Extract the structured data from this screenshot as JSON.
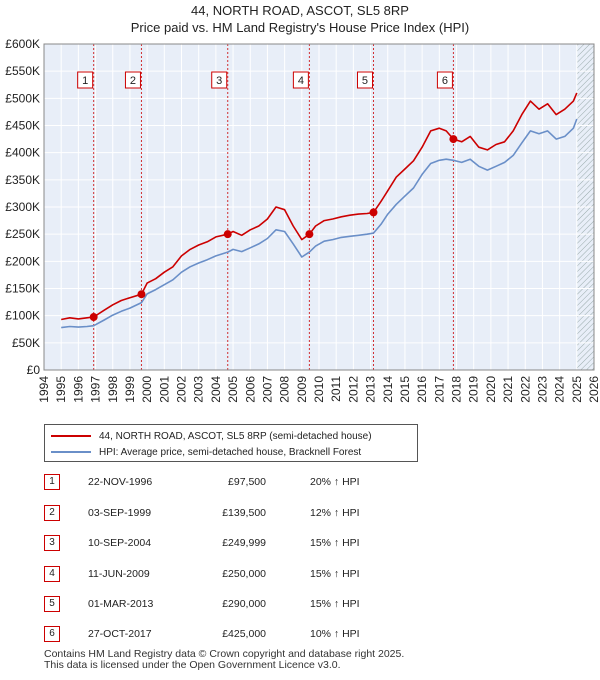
{
  "title": "44, NORTH ROAD, ASCOT, SL5 8RP",
  "subtitle": "Price paid vs. HM Land Registry's House Price Index (HPI)",
  "colors": {
    "property": "#cc0000",
    "hpi": "#6a8fc8",
    "band": "#e8eef8",
    "grid": "#ffffff"
  },
  "legend": {
    "property_label": "44, NORTH ROAD, ASCOT, SL5 8RP (semi-detached house)",
    "hpi_label": "HPI: Average price, semi-detached house, Bracknell Forest"
  },
  "sales": [
    {
      "num": "1",
      "date": "22-NOV-1996",
      "price": "£97,500",
      "hpi": "20% ↑ HPI"
    },
    {
      "num": "2",
      "date": "03-SEP-1999",
      "price": "£139,500",
      "hpi": "12% ↑ HPI"
    },
    {
      "num": "3",
      "date": "10-SEP-2004",
      "price": "£249,999",
      "hpi": "15% ↑ HPI"
    },
    {
      "num": "4",
      "date": "11-JUN-2009",
      "price": "£250,000",
      "hpi": "15% ↑ HPI"
    },
    {
      "num": "5",
      "date": "01-MAR-2013",
      "price": "£290,000",
      "hpi": "15% ↑ HPI"
    },
    {
      "num": "6",
      "date": "27-OCT-2017",
      "price": "£425,000",
      "hpi": "10% ↑ HPI"
    }
  ],
  "footer": {
    "line1": "Contains HM Land Registry data © Crown copyright and database right 2025.",
    "line2": "This data is licensed under the Open Government Licence v3.0."
  },
  "chart_data": {
    "type": "line",
    "xlim": [
      1994,
      2026
    ],
    "ylim": [
      0,
      600000
    ],
    "grid": true,
    "legend_position": "below",
    "x_ticks": [
      1994,
      1995,
      1996,
      1997,
      1998,
      1999,
      2000,
      2001,
      2002,
      2003,
      2004,
      2005,
      2006,
      2007,
      2008,
      2009,
      2010,
      2011,
      2012,
      2013,
      2014,
      2015,
      2016,
      2017,
      2018,
      2019,
      2020,
      2021,
      2022,
      2023,
      2024,
      2025,
      2026
    ],
    "y_ticks": [
      {
        "value": 0,
        "label": "£0"
      },
      {
        "value": 50000,
        "label": "£50K"
      },
      {
        "value": 100000,
        "label": "£100K"
      },
      {
        "value": 150000,
        "label": "£150K"
      },
      {
        "value": 200000,
        "label": "£200K"
      },
      {
        "value": 250000,
        "label": "£250K"
      },
      {
        "value": 300000,
        "label": "£300K"
      },
      {
        "value": 350000,
        "label": "£350K"
      },
      {
        "value": 400000,
        "label": "£400K"
      },
      {
        "value": 450000,
        "label": "£450K"
      },
      {
        "value": 500000,
        "label": "£500K"
      },
      {
        "value": 550000,
        "label": "£550K"
      },
      {
        "value": 600000,
        "label": "£600K"
      }
    ],
    "markers": [
      {
        "label": "1",
        "x": 1996.89,
        "y": 97500
      },
      {
        "label": "2",
        "x": 1999.67,
        "y": 139500
      },
      {
        "label": "3",
        "x": 2004.69,
        "y": 249999
      },
      {
        "label": "4",
        "x": 2009.44,
        "y": 250000
      },
      {
        "label": "5",
        "x": 2013.17,
        "y": 290000
      },
      {
        "label": "6",
        "x": 2017.82,
        "y": 425000
      }
    ],
    "shaded_ranges": [
      [
        2025.0,
        2026.0
      ]
    ],
    "series": [
      {
        "name": "44, NORTH ROAD, ASCOT, SL5 8RP (semi-detached house)",
        "color": "#cc0000",
        "x": [
          1995.0,
          1995.5,
          1996.0,
          1996.5,
          1996.89,
          1997.5,
          1998.0,
          1998.5,
          1999.0,
          1999.67,
          2000.0,
          2000.5,
          2001.0,
          2001.5,
          2002.0,
          2002.5,
          2003.0,
          2003.5,
          2004.0,
          2004.69,
          2005.0,
          2005.5,
          2006.0,
          2006.5,
          2007.0,
          2007.5,
          2008.0,
          2008.5,
          2009.0,
          2009.44,
          2009.8,
          2010.3,
          2010.8,
          2011.3,
          2011.8,
          2012.3,
          2012.8,
          2013.17,
          2013.6,
          2014.0,
          2014.5,
          2015.0,
          2015.5,
          2016.0,
          2016.5,
          2017.0,
          2017.4,
          2017.82,
          2018.3,
          2018.8,
          2019.3,
          2019.8,
          2020.3,
          2020.8,
          2021.3,
          2021.8,
          2022.3,
          2022.8,
          2023.3,
          2023.8,
          2024.3,
          2024.8,
          2025.0
        ],
        "y": [
          93000,
          96000,
          94000,
          96000,
          97500,
          110000,
          120000,
          128000,
          133000,
          139500,
          160000,
          168000,
          180000,
          190000,
          210000,
          222000,
          230000,
          236000,
          245000,
          249999,
          255000,
          248000,
          258000,
          265000,
          278000,
          300000,
          295000,
          265000,
          240000,
          250000,
          265000,
          275000,
          278000,
          282000,
          285000,
          287000,
          288000,
          290000,
          310000,
          330000,
          355000,
          370000,
          385000,
          410000,
          440000,
          445000,
          440000,
          425000,
          420000,
          430000,
          410000,
          405000,
          415000,
          420000,
          440000,
          470000,
          495000,
          480000,
          490000,
          470000,
          480000,
          495000,
          510000
        ]
      },
      {
        "name": "HPI: Average price, semi-detached house, Bracknell Forest",
        "color": "#6a8fc8",
        "x": [
          1995.0,
          1995.5,
          1996.0,
          1996.5,
          1996.89,
          1997.5,
          1998.0,
          1998.5,
          1999.0,
          1999.67,
          2000.0,
          2000.5,
          2001.0,
          2001.5,
          2002.0,
          2002.5,
          2003.0,
          2003.5,
          2004.0,
          2004.69,
          2005.0,
          2005.5,
          2006.0,
          2006.5,
          2007.0,
          2007.5,
          2008.0,
          2008.5,
          2009.0,
          2009.44,
          2009.8,
          2010.3,
          2010.8,
          2011.3,
          2011.8,
          2012.3,
          2012.8,
          2013.17,
          2013.6,
          2014.0,
          2014.5,
          2015.0,
          2015.5,
          2016.0,
          2016.5,
          2017.0,
          2017.4,
          2017.82,
          2018.3,
          2018.8,
          2019.3,
          2019.8,
          2020.3,
          2020.8,
          2021.3,
          2021.8,
          2022.3,
          2022.8,
          2023.3,
          2023.8,
          2024.3,
          2024.8,
          2025.0
        ],
        "y": [
          78000,
          80000,
          79000,
          80000,
          81500,
          92000,
          101000,
          108000,
          114000,
          124000,
          140000,
          148000,
          157000,
          166000,
          180000,
          190000,
          197000,
          203000,
          210000,
          217000,
          222000,
          218000,
          225000,
          232000,
          242000,
          258000,
          255000,
          232000,
          208000,
          217000,
          228000,
          237000,
          240000,
          244000,
          246000,
          248000,
          250000,
          252000,
          268000,
          287000,
          305000,
          320000,
          335000,
          360000,
          380000,
          386000,
          388000,
          386000,
          382000,
          388000,
          375000,
          368000,
          375000,
          382000,
          395000,
          418000,
          440000,
          435000,
          440000,
          425000,
          430000,
          445000,
          462000
        ]
      }
    ]
  }
}
